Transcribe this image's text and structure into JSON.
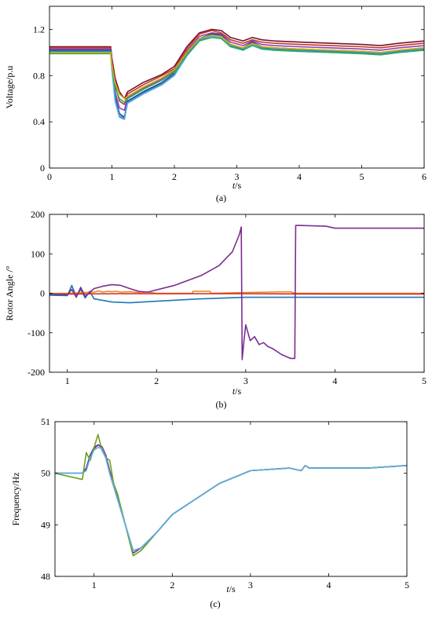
{
  "chart_data": [
    {
      "id": "a",
      "type": "line",
      "panel_label": "(a)",
      "xlabel_italic": "t",
      "xlabel_unit": "/s",
      "ylabel": "Voltage/p.u",
      "xlim": [
        0,
        6
      ],
      "ylim": [
        0,
        1.4
      ],
      "xticks": [
        0,
        1,
        2,
        3,
        4,
        5,
        6
      ],
      "yticks": [
        0,
        0.4,
        0.8,
        1.2
      ],
      "ytick_labels": [
        "0",
        "0.4",
        "0.8",
        "1.2"
      ],
      "grid": false,
      "series": [
        {
          "color": "#7B1030",
          "x": [
            0,
            0.98,
            1.0,
            1.05,
            1.12,
            1.2,
            1.25,
            1.5,
            1.8,
            2.0,
            2.2,
            2.4,
            2.6,
            2.75,
            2.9,
            3.1,
            3.25,
            3.4,
            3.6,
            4.0,
            4.5,
            5.0,
            5.3,
            5.6,
            6.0
          ],
          "y": [
            1.05,
            1.05,
            0.95,
            0.78,
            0.66,
            0.6,
            0.66,
            0.74,
            0.81,
            0.88,
            1.05,
            1.17,
            1.2,
            1.19,
            1.13,
            1.1,
            1.13,
            1.11,
            1.1,
            1.09,
            1.08,
            1.07,
            1.06,
            1.08,
            1.1
          ]
        },
        {
          "color": "#C0392B",
          "x": [
            0,
            0.98,
            1.0,
            1.05,
            1.12,
            1.2,
            1.25,
            1.5,
            1.8,
            2.0,
            2.2,
            2.4,
            2.6,
            2.75,
            2.9,
            3.1,
            3.25,
            3.4,
            3.6,
            4.0,
            4.5,
            5.0,
            5.3,
            5.6,
            6.0
          ],
          "y": [
            1.04,
            1.04,
            0.92,
            0.72,
            0.58,
            0.55,
            0.64,
            0.72,
            0.8,
            0.86,
            1.03,
            1.16,
            1.19,
            1.17,
            1.11,
            1.08,
            1.11,
            1.09,
            1.08,
            1.07,
            1.06,
            1.05,
            1.04,
            1.06,
            1.08
          ]
        },
        {
          "color": "#8E44AD",
          "x": [
            0,
            0.98,
            1.0,
            1.05,
            1.12,
            1.2,
            1.25,
            1.5,
            1.8,
            2.0,
            2.2,
            2.4,
            2.6,
            2.75,
            2.9,
            3.1,
            3.25,
            3.4,
            3.6,
            4.0,
            4.5,
            5.0,
            5.3,
            5.6,
            6.0
          ],
          "y": [
            1.03,
            1.03,
            0.9,
            0.66,
            0.52,
            0.5,
            0.61,
            0.69,
            0.77,
            0.84,
            1.01,
            1.14,
            1.17,
            1.16,
            1.09,
            1.06,
            1.1,
            1.07,
            1.06,
            1.05,
            1.04,
            1.03,
            1.02,
            1.04,
            1.06
          ]
        },
        {
          "color": "#2C3E8F",
          "x": [
            0,
            0.98,
            1.0,
            1.05,
            1.12,
            1.2,
            1.25,
            1.5,
            1.8,
            2.0,
            2.2,
            2.4,
            2.6,
            2.75,
            2.9,
            3.1,
            3.25,
            3.4,
            3.6,
            4.0,
            4.5,
            5.0,
            5.3,
            5.6,
            6.0
          ],
          "y": [
            1.02,
            1.02,
            0.88,
            0.62,
            0.47,
            0.44,
            0.58,
            0.66,
            0.74,
            0.82,
            0.99,
            1.12,
            1.16,
            1.15,
            1.07,
            1.04,
            1.09,
            1.05,
            1.04,
            1.03,
            1.02,
            1.01,
            1.0,
            1.02,
            1.04
          ]
        },
        {
          "color": "#2E86C1",
          "x": [
            0,
            0.98,
            1.0,
            1.05,
            1.12,
            1.2,
            1.25,
            1.5,
            1.8,
            2.0,
            2.2,
            2.4,
            2.6,
            2.75,
            2.9,
            3.1,
            3.25,
            3.4,
            3.6,
            4.0,
            4.5,
            5.0,
            5.3,
            5.6,
            6.0
          ],
          "y": [
            1.01,
            1.01,
            0.86,
            0.6,
            0.45,
            0.43,
            0.57,
            0.65,
            0.73,
            0.81,
            0.98,
            1.11,
            1.15,
            1.14,
            1.06,
            1.03,
            1.08,
            1.04,
            1.03,
            1.02,
            1.01,
            1.0,
            0.99,
            1.01,
            1.03
          ]
        },
        {
          "color": "#5DADE2",
          "x": [
            0,
            0.98,
            1.0,
            1.05,
            1.12,
            1.2,
            1.25,
            1.5,
            1.8,
            2.0,
            2.2,
            2.4,
            2.6,
            2.75,
            2.9,
            3.1,
            3.25,
            3.4,
            3.6,
            4.0,
            4.5,
            5.0,
            5.3,
            5.6,
            6.0
          ],
          "y": [
            1.0,
            1.0,
            0.85,
            0.58,
            0.44,
            0.42,
            0.56,
            0.64,
            0.72,
            0.8,
            0.97,
            1.1,
            1.14,
            1.13,
            1.05,
            1.02,
            1.07,
            1.03,
            1.02,
            1.01,
            1.0,
            0.99,
            0.98,
            1.0,
            1.02
          ]
        },
        {
          "color": "#27AE60",
          "x": [
            0,
            0.98,
            1.0,
            1.05,
            1.12,
            1.2,
            1.25,
            1.5,
            1.8,
            2.0,
            2.2,
            2.4,
            2.6,
            2.75,
            2.9,
            3.1,
            3.25,
            3.4,
            3.6,
            4.0,
            4.5,
            5.0,
            5.3,
            5.6,
            6.0
          ],
          "y": [
            0.99,
            0.99,
            0.88,
            0.7,
            0.6,
            0.57,
            0.6,
            0.68,
            0.76,
            0.83,
            0.98,
            1.1,
            1.13,
            1.12,
            1.05,
            1.02,
            1.06,
            1.03,
            1.02,
            1.01,
            1.0,
            0.99,
            0.98,
            1.0,
            1.02
          ]
        },
        {
          "color": "#D4AC0D",
          "x": [
            0,
            0.98,
            1.0,
            1.05,
            1.12,
            1.2,
            1.25,
            1.5,
            1.8,
            2.0,
            2.2,
            2.4,
            2.6,
            2.75,
            2.9,
            3.1,
            3.25,
            3.4,
            3.6,
            4.0,
            4.5,
            5.0,
            5.3,
            5.6,
            6.0
          ],
          "y": [
            1.0,
            1.0,
            0.89,
            0.74,
            0.64,
            0.6,
            0.62,
            0.7,
            0.78,
            0.85,
            1.0,
            1.12,
            1.15,
            1.14,
            1.07,
            1.04,
            1.08,
            1.05,
            1.04,
            1.03,
            1.02,
            1.01,
            1.0,
            1.02,
            1.04
          ]
        }
      ]
    },
    {
      "id": "b",
      "type": "line",
      "panel_label": "(b)",
      "xlabel_italic": "t",
      "xlabel_unit": "/s",
      "ylabel": "Rotor Angle /°",
      "xlim": [
        0.8,
        5
      ],
      "ylim": [
        -200,
        200
      ],
      "xticks": [
        1,
        2,
        3,
        4,
        5
      ],
      "yticks": [
        -200,
        -100,
        0,
        100,
        200
      ],
      "grid": false,
      "series": [
        {
          "color": "#1F77B4",
          "x": [
            0.8,
            1.0,
            1.05,
            1.1,
            1.15,
            1.2,
            1.25,
            1.3,
            1.4,
            1.5,
            1.7,
            2.0,
            2.5,
            3.0,
            3.5,
            4.0,
            5.0
          ],
          "y": [
            -5,
            -6,
            20,
            -8,
            10,
            -12,
            5,
            -14,
            -18,
            -22,
            -24,
            -20,
            -14,
            -10,
            -10,
            -10,
            -10
          ]
        },
        {
          "color": "#E8821A",
          "x": [
            0.8,
            1.0,
            1.2,
            1.3,
            1.35,
            1.4,
            1.45,
            1.5,
            1.55,
            1.6,
            1.7,
            1.8,
            1.9,
            2.0,
            2.4,
            2.41,
            2.6,
            2.61,
            3.0,
            3.5,
            3.55,
            5.0
          ],
          "y": [
            0,
            0,
            2,
            3,
            6,
            3,
            5,
            4,
            5,
            3,
            4,
            2,
            3,
            0,
            0,
            5,
            5,
            0,
            2,
            4,
            0,
            0
          ]
        },
        {
          "color": "#D62728",
          "x": [
            0.8,
            1.0,
            1.5,
            2.0,
            3.0,
            4.0,
            5.0
          ],
          "y": [
            -2,
            -2,
            -1,
            -1,
            -1,
            -2,
            -2
          ]
        },
        {
          "color": "#7B2D8E",
          "x": [
            0.8,
            1.0,
            1.05,
            1.1,
            1.15,
            1.2,
            1.3,
            1.4,
            1.5,
            1.6,
            1.7,
            1.8,
            1.9,
            2.2,
            2.5,
            2.7,
            2.85,
            2.93,
            2.95,
            2.96,
            2.98,
            3.0,
            3.05,
            3.1,
            3.15,
            3.2,
            3.25,
            3.3,
            3.4,
            3.5,
            3.55,
            3.56,
            3.6,
            3.9,
            4.0,
            5.0
          ],
          "y": [
            -2,
            -4,
            10,
            -10,
            15,
            -8,
            12,
            18,
            22,
            20,
            12,
            5,
            3,
            20,
            45,
            70,
            105,
            150,
            168,
            -168,
            -120,
            -80,
            -120,
            -110,
            -130,
            -125,
            -135,
            -140,
            -155,
            -165,
            -165,
            172,
            172,
            170,
            165,
            165
          ]
        }
      ]
    },
    {
      "id": "c",
      "type": "line",
      "panel_label": "(c)",
      "xlabel_italic": "t",
      "xlabel_unit": "/s",
      "ylabel": "Frequency/Hz",
      "xlim": [
        0.5,
        5
      ],
      "ylim": [
        48,
        51
      ],
      "xticks": [
        1,
        2,
        3,
        4,
        5
      ],
      "yticks": [
        48,
        49,
        50,
        51
      ],
      "grid": false,
      "series": [
        {
          "color": "#2C3E8F",
          "x": [
            0.5,
            0.85,
            0.9,
            0.95,
            1.0,
            1.05,
            1.1,
            1.15,
            1.2,
            1.3,
            1.4,
            1.5,
            1.6,
            1.8,
            2.0,
            2.3,
            2.6,
            3.0,
            3.5,
            3.65,
            3.7,
            3.75,
            4.0,
            4.5,
            5.0
          ],
          "y": [
            50.0,
            50.0,
            50.1,
            50.35,
            50.5,
            50.55,
            50.5,
            50.3,
            50.0,
            49.5,
            49.0,
            48.5,
            48.55,
            48.85,
            49.2,
            49.5,
            49.8,
            50.05,
            50.1,
            50.05,
            50.15,
            50.1,
            50.1,
            50.1,
            50.15
          ]
        },
        {
          "color": "#7B2D8E",
          "x": [
            0.5,
            0.85,
            0.9,
            0.95,
            1.0,
            1.05,
            1.1,
            1.15,
            1.2,
            1.3,
            1.4,
            1.5,
            1.6,
            1.8,
            2.0,
            2.3,
            2.6,
            3.0,
            3.5,
            3.65,
            3.7,
            3.75,
            4.0,
            4.5,
            5.0
          ],
          "y": [
            50.0,
            50.0,
            50.1,
            50.3,
            50.48,
            50.55,
            50.52,
            50.35,
            50.05,
            49.55,
            49.0,
            48.45,
            48.55,
            48.85,
            49.2,
            49.5,
            49.8,
            50.05,
            50.1,
            50.05,
            50.15,
            50.1,
            50.1,
            50.1,
            50.15
          ]
        },
        {
          "color": "#6AA121",
          "x": [
            0.5,
            0.85,
            0.9,
            0.95,
            1.0,
            1.05,
            1.1,
            1.15,
            1.2,
            1.25,
            1.3,
            1.4,
            1.5,
            1.6,
            1.8,
            2.0,
            2.3,
            2.6,
            3.0,
            3.5,
            3.65,
            3.7,
            3.75,
            4.0,
            4.5,
            5.0
          ],
          "y": [
            50.0,
            49.88,
            50.4,
            50.25,
            50.5,
            50.75,
            50.45,
            50.3,
            50.25,
            49.8,
            49.6,
            49.0,
            48.4,
            48.5,
            48.85,
            49.2,
            49.5,
            49.8,
            50.05,
            50.1,
            50.05,
            50.15,
            50.1,
            50.1,
            50.1,
            50.15
          ]
        },
        {
          "color": "#5DADE2",
          "x": [
            0.5,
            0.85,
            0.9,
            0.95,
            1.0,
            1.05,
            1.1,
            1.15,
            1.2,
            1.3,
            1.4,
            1.5,
            1.6,
            1.8,
            2.0,
            2.3,
            2.6,
            3.0,
            3.5,
            3.65,
            3.7,
            3.75,
            4.0,
            4.5,
            5.0
          ],
          "y": [
            50.0,
            50.0,
            50.05,
            50.3,
            50.45,
            50.5,
            50.48,
            50.3,
            50.0,
            49.5,
            49.0,
            48.5,
            48.55,
            48.85,
            49.2,
            49.5,
            49.8,
            50.05,
            50.1,
            50.05,
            50.15,
            50.1,
            50.1,
            50.1,
            50.15
          ]
        }
      ]
    }
  ]
}
